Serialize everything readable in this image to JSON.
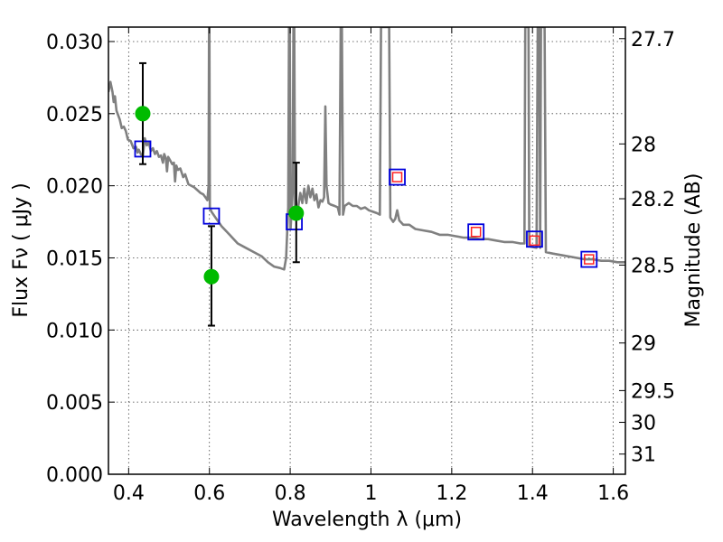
{
  "chart_data": {
    "type": "scatter",
    "xlabel": "Wavelength  λ (μm)",
    "ylabel": "Flux  Fν  ( μJy )",
    "ylabel_right": "Magnitude (AB)",
    "xlim": [
      0.35,
      1.63
    ],
    "ylim": [
      0.0,
      0.031
    ],
    "grid": true,
    "x_ticks": [
      {
        "value": 0.4,
        "label": "0.4"
      },
      {
        "value": 0.6,
        "label": "0.6"
      },
      {
        "value": 0.8,
        "label": "0.8"
      },
      {
        "value": 1.0,
        "label": "1"
      },
      {
        "value": 1.2,
        "label": "1.2"
      },
      {
        "value": 1.4,
        "label": "1.4"
      },
      {
        "value": 1.6,
        "label": "1.6"
      }
    ],
    "y_ticks": [
      {
        "value": 0.0,
        "label": "0.000"
      },
      {
        "value": 0.005,
        "label": "0.005"
      },
      {
        "value": 0.01,
        "label": "0.010"
      },
      {
        "value": 0.015,
        "label": "0.015"
      },
      {
        "value": 0.02,
        "label": "0.020"
      },
      {
        "value": 0.025,
        "label": "0.025"
      },
      {
        "value": 0.03,
        "label": "0.030"
      }
    ],
    "right_ticks": [
      {
        "flux": 0.0302,
        "label": "27.7"
      },
      {
        "flux": 0.0229,
        "label": "28"
      },
      {
        "flux": 0.0191,
        "label": "28.2"
      },
      {
        "flux": 0.0145,
        "label": "28.5"
      },
      {
        "flux": 0.0091,
        "label": "29"
      },
      {
        "flux": 0.0058,
        "label": "29.5"
      },
      {
        "flux": 0.0036,
        "label": "30"
      },
      {
        "flux": 0.0014,
        "label": "31"
      }
    ],
    "spectrum": {
      "color": "#808080",
      "points": [
        [
          0.35,
          0.0265
        ],
        [
          0.355,
          0.0272
        ],
        [
          0.36,
          0.0265
        ],
        [
          0.363,
          0.0258
        ],
        [
          0.366,
          0.0262
        ],
        [
          0.37,
          0.0252
        ],
        [
          0.378,
          0.0246
        ],
        [
          0.383,
          0.024
        ],
        [
          0.388,
          0.0241
        ],
        [
          0.393,
          0.0238
        ],
        [
          0.398,
          0.0232
        ],
        [
          0.405,
          0.0231
        ],
        [
          0.412,
          0.0226
        ],
        [
          0.418,
          0.0227
        ],
        [
          0.422,
          0.0223
        ],
        [
          0.425,
          0.0225
        ],
        [
          0.43,
          0.0222
        ],
        [
          0.435,
          0.022
        ],
        [
          0.44,
          0.0233
        ],
        [
          0.445,
          0.0228
        ],
        [
          0.45,
          0.023
        ],
        [
          0.455,
          0.0224
        ],
        [
          0.46,
          0.0226
        ],
        [
          0.465,
          0.0222
        ],
        [
          0.47,
          0.0224
        ],
        [
          0.475,
          0.022
        ],
        [
          0.48,
          0.0221
        ],
        [
          0.485,
          0.0216
        ],
        [
          0.488,
          0.0222
        ],
        [
          0.492,
          0.0219
        ],
        [
          0.495,
          0.021
        ],
        [
          0.498,
          0.022
        ],
        [
          0.502,
          0.0218
        ],
        [
          0.508,
          0.0215
        ],
        [
          0.512,
          0.0216
        ],
        [
          0.515,
          0.0203
        ],
        [
          0.518,
          0.0214
        ],
        [
          0.522,
          0.0211
        ],
        [
          0.528,
          0.0212
        ],
        [
          0.535,
          0.0206
        ],
        [
          0.54,
          0.0208
        ],
        [
          0.548,
          0.0201
        ],
        [
          0.555,
          0.02
        ],
        [
          0.562,
          0.0199
        ],
        [
          0.57,
          0.0197
        ],
        [
          0.578,
          0.0195
        ],
        [
          0.585,
          0.0194
        ],
        [
          0.59,
          0.0192
        ],
        [
          0.595,
          0.019
        ],
        [
          0.598,
          0.02
        ],
        [
          0.599,
          0.031
        ],
        [
          0.6,
          0.031
        ],
        [
          0.601,
          0.0185
        ],
        [
          0.605,
          0.0182
        ],
        [
          0.615,
          0.0178
        ],
        [
          0.63,
          0.0172
        ],
        [
          0.65,
          0.0166
        ],
        [
          0.67,
          0.016
        ],
        [
          0.69,
          0.0157
        ],
        [
          0.71,
          0.0154
        ],
        [
          0.73,
          0.0151
        ],
        [
          0.745,
          0.0147
        ],
        [
          0.76,
          0.0144
        ],
        [
          0.775,
          0.0143
        ],
        [
          0.785,
          0.0142
        ],
        [
          0.79,
          0.015
        ],
        [
          0.795,
          0.0185
        ],
        [
          0.797,
          0.031
        ],
        [
          0.799,
          0.031
        ],
        [
          0.801,
          0.017
        ],
        [
          0.806,
          0.0195
        ],
        [
          0.808,
          0.031
        ],
        [
          0.81,
          0.031
        ],
        [
          0.812,
          0.018
        ],
        [
          0.818,
          0.0182
        ],
        [
          0.825,
          0.0195
        ],
        [
          0.83,
          0.0188
        ],
        [
          0.835,
          0.0198
        ],
        [
          0.84,
          0.0188
        ],
        [
          0.845,
          0.02
        ],
        [
          0.85,
          0.0192
        ],
        [
          0.855,
          0.0198
        ],
        [
          0.86,
          0.019
        ],
        [
          0.865,
          0.0194
        ],
        [
          0.87,
          0.0185
        ],
        [
          0.875,
          0.019
        ],
        [
          0.88,
          0.0189
        ],
        [
          0.884,
          0.0192
        ],
        [
          0.887,
          0.0255
        ],
        [
          0.89,
          0.02
        ],
        [
          0.895,
          0.0188
        ],
        [
          0.9,
          0.0187
        ],
        [
          0.91,
          0.0186
        ],
        [
          0.918,
          0.0185
        ],
        [
          0.922,
          0.018
        ],
        [
          0.925,
          0.031
        ],
        [
          0.928,
          0.031
        ],
        [
          0.931,
          0.018
        ],
        [
          0.935,
          0.0186
        ],
        [
          0.945,
          0.0188
        ],
        [
          0.955,
          0.0186
        ],
        [
          0.965,
          0.0186
        ],
        [
          0.975,
          0.0184
        ],
        [
          0.985,
          0.0185
        ],
        [
          0.995,
          0.0183
        ],
        [
          1.005,
          0.0182
        ],
        [
          1.015,
          0.0181
        ],
        [
          1.022,
          0.018
        ],
        [
          1.025,
          0.031
        ],
        [
          1.045,
          0.031
        ],
        [
          1.048,
          0.0178
        ],
        [
          1.055,
          0.0175
        ],
        [
          1.06,
          0.0177
        ],
        [
          1.065,
          0.0183
        ],
        [
          1.07,
          0.0176
        ],
        [
          1.08,
          0.0173
        ],
        [
          1.095,
          0.0173
        ],
        [
          1.11,
          0.017
        ],
        [
          1.13,
          0.0169
        ],
        [
          1.15,
          0.0168
        ],
        [
          1.17,
          0.0166
        ],
        [
          1.19,
          0.0166
        ],
        [
          1.21,
          0.0165
        ],
        [
          1.23,
          0.0164
        ],
        [
          1.25,
          0.0164
        ],
        [
          1.27,
          0.0163
        ],
        [
          1.29,
          0.0163
        ],
        [
          1.31,
          0.0162
        ],
        [
          1.33,
          0.0161
        ],
        [
          1.35,
          0.0161
        ],
        [
          1.37,
          0.016
        ],
        [
          1.38,
          0.016
        ],
        [
          1.382,
          0.031
        ],
        [
          1.39,
          0.031
        ],
        [
          1.392,
          0.0158
        ],
        [
          1.41,
          0.0157
        ],
        [
          1.413,
          0.031
        ],
        [
          1.417,
          0.031
        ],
        [
          1.419,
          0.0157
        ],
        [
          1.421,
          0.031
        ],
        [
          1.43,
          0.031
        ],
        [
          1.433,
          0.0154
        ],
        [
          1.45,
          0.0153
        ],
        [
          1.47,
          0.0152
        ],
        [
          1.49,
          0.0151
        ],
        [
          1.51,
          0.015
        ],
        [
          1.53,
          0.0149
        ],
        [
          1.55,
          0.0149
        ],
        [
          1.57,
          0.0148
        ],
        [
          1.59,
          0.0148
        ],
        [
          1.61,
          0.0147
        ],
        [
          1.63,
          0.0147
        ]
      ]
    },
    "model_photometry": {
      "name": "",
      "marker": "square",
      "color": "#0000dd",
      "points": [
        {
          "x": 0.435,
          "y": 0.02255
        },
        {
          "x": 0.605,
          "y": 0.0179
        },
        {
          "x": 0.81,
          "y": 0.0175
        },
        {
          "x": 1.065,
          "y": 0.0206
        },
        {
          "x": 1.26,
          "y": 0.0168
        },
        {
          "x": 1.405,
          "y": 0.0163
        },
        {
          "x": 1.54,
          "y": 0.0149
        }
      ]
    },
    "nir_photometry": {
      "name": "",
      "marker": "square",
      "color": "#ff2222",
      "points": [
        {
          "x": 1.065,
          "y": 0.0206
        },
        {
          "x": 1.26,
          "y": 0.0168
        },
        {
          "x": 1.405,
          "y": 0.0162
        },
        {
          "x": 1.54,
          "y": 0.0149
        }
      ]
    },
    "observed": {
      "name": "",
      "marker": "circle",
      "color": "#00bb00",
      "error_color": "#000000",
      "points": [
        {
          "x": 0.435,
          "y": 0.025,
          "yerr_low": 0.0215,
          "yerr_high": 0.0285
        },
        {
          "x": 0.605,
          "y": 0.0137,
          "yerr_low": 0.0103,
          "yerr_high": 0.0172
        },
        {
          "x": 0.815,
          "y": 0.0181,
          "yerr_low": 0.0147,
          "yerr_high": 0.0216
        }
      ]
    }
  }
}
